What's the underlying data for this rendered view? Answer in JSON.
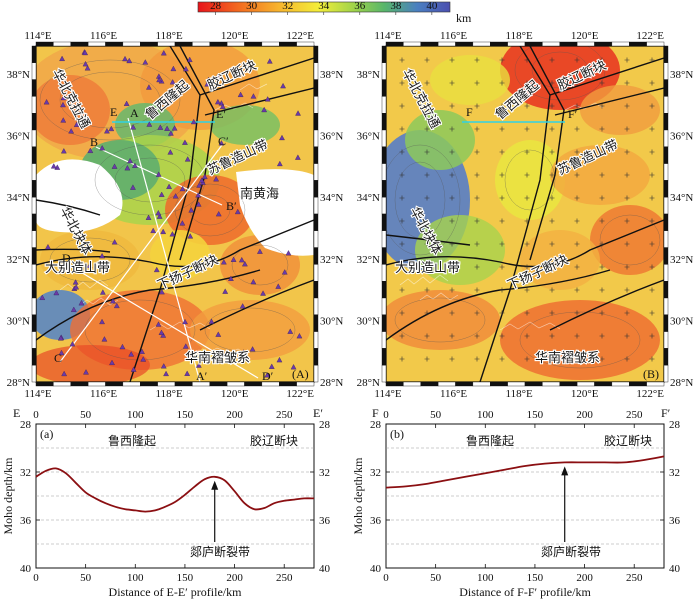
{
  "colorbar": {
    "unit": "km",
    "ticks": [
      "28",
      "30",
      "32",
      "34",
      "36",
      "38",
      "40"
    ],
    "stops": [
      "#e8141b",
      "#f36a1f",
      "#f7b42e",
      "#f3ee3a",
      "#9fd34a",
      "#58b66b",
      "#4a7fc1",
      "#4b4fb0"
    ]
  },
  "maps": {
    "lon_ticks": [
      "114°E",
      "116°E",
      "118°E",
      "120°E",
      "122°E"
    ],
    "lat_ticks": [
      "38°N",
      "36°N",
      "34°N",
      "32°N",
      "30°N",
      "28°N"
    ],
    "A": {
      "panel_label": "(A)",
      "profile_labels": [
        "A",
        "A′",
        "B",
        "B′",
        "C",
        "C′",
        "D",
        "D′",
        "E",
        "E′"
      ],
      "region_labels": [
        "华北克拉通",
        "鲁西隆起",
        "胶辽断块",
        "苏鲁造山带",
        "南黄海",
        "华北块体",
        "下扬子断块",
        "大别造山带",
        "华南褶皱系"
      ]
    },
    "B": {
      "panel_label": "(B)",
      "profile_labels": [
        "F",
        "F′"
      ],
      "region_labels": [
        "华北克拉通",
        "鲁西隆起",
        "胶辽断块",
        "苏鲁造山带",
        "华北块体",
        "下扬子断块",
        "大别造山带",
        "华南褶皱系"
      ]
    }
  },
  "chart_data": [
    {
      "type": "line",
      "panel_label": "(a)",
      "profile_start": "E",
      "profile_end": "E′",
      "xlabel": "Distance of E-E′ profile/km",
      "ylabel": "Moho depth/km",
      "x_ticks": [
        "0",
        "50",
        "100",
        "150",
        "200",
        "250"
      ],
      "y_ticks": [
        "28",
        "32",
        "36",
        "40"
      ],
      "xlim": [
        0,
        280
      ],
      "ylim": [
        40,
        28
      ],
      "region_labels": [
        "鲁西隆起",
        "胶辽断块"
      ],
      "annotation": "郯庐断裂带",
      "annotation_x": 180,
      "x": [
        0,
        10,
        20,
        30,
        40,
        50,
        60,
        70,
        80,
        90,
        100,
        110,
        120,
        130,
        140,
        150,
        160,
        170,
        180,
        190,
        200,
        210,
        220,
        230,
        240,
        250,
        260,
        270,
        280
      ],
      "y": [
        32.4,
        31.9,
        31.7,
        32.1,
        32.9,
        33.7,
        34.2,
        34.6,
        34.9,
        35.1,
        35.2,
        35.3,
        35.2,
        34.9,
        34.5,
        33.9,
        33.2,
        32.6,
        32.4,
        32.7,
        33.6,
        34.6,
        35.1,
        35.0,
        34.6,
        34.4,
        34.3,
        34.2,
        34.2
      ]
    },
    {
      "type": "line",
      "panel_label": "(b)",
      "profile_start": "F",
      "profile_end": "F′",
      "xlabel": "Distance of F-F′ profile/km",
      "ylabel": "Moho depth/km",
      "x_ticks": [
        "0",
        "50",
        "100",
        "150",
        "200",
        "250"
      ],
      "y_ticks": [
        "28",
        "32",
        "36",
        "40"
      ],
      "xlim": [
        0,
        280
      ],
      "ylim": [
        40,
        28
      ],
      "region_labels": [
        "鲁西隆起",
        "胶辽断块"
      ],
      "annotation": "郯庐断裂带",
      "annotation_x": 180,
      "x": [
        0,
        20,
        40,
        60,
        80,
        100,
        120,
        140,
        160,
        180,
        200,
        220,
        240,
        260,
        280
      ],
      "y": [
        33.3,
        33.2,
        33.0,
        32.7,
        32.4,
        32.1,
        31.8,
        31.5,
        31.3,
        31.2,
        31.2,
        31.2,
        31.2,
        31.0,
        30.7
      ]
    }
  ]
}
